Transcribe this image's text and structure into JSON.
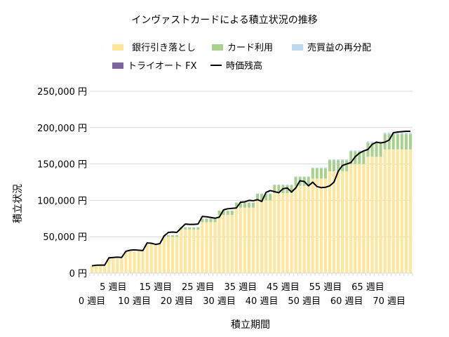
{
  "chart_data": {
    "type": "bar",
    "title": "インヴァストカードによる積立状況の推移",
    "xlabel": "積立期間",
    "ylabel": "積立状況",
    "ylim": [
      0,
      250000
    ],
    "yticks": [
      "0 円",
      "50,000 円",
      "100,000 円",
      "150,000 円",
      "200,000 円",
      "250,000 円"
    ],
    "ytick_values": [
      0,
      50000,
      100000,
      150000,
      200000,
      250000
    ],
    "xtick_labels": [
      "0 週目",
      "5 週目",
      "10 週目",
      "15 週目",
      "20 週目",
      "25 週目",
      "30 週目",
      "35 週目",
      "40 週目",
      "45 週目",
      "50 週目",
      "55 週目",
      "60 週目",
      "65 週目",
      "70 週目"
    ],
    "xtick_weeks": [
      0,
      5,
      10,
      15,
      20,
      25,
      30,
      35,
      40,
      45,
      50,
      55,
      60,
      65,
      70
    ],
    "grid": true,
    "legend_position": "top",
    "stacked": true,
    "series": [
      {
        "name": "銀行引き落とし",
        "color": "#FFE699",
        "kind": "bar",
        "values": [
          10000,
          10000,
          10000,
          10000,
          20000,
          20000,
          20000,
          20000,
          30000,
          30000,
          30000,
          30000,
          30000,
          40000,
          40000,
          40000,
          40000,
          50000,
          50000,
          50000,
          50000,
          60000,
          60000,
          60000,
          60000,
          60000,
          70000,
          70000,
          70000,
          70000,
          80000,
          80000,
          80000,
          80000,
          90000,
          90000,
          90000,
          90000,
          90000,
          100000,
          100000,
          100000,
          100000,
          110000,
          110000,
          110000,
          110000,
          110000,
          120000,
          120000,
          120000,
          120000,
          130000,
          130000,
          130000,
          130000,
          140000,
          140000,
          140000,
          140000,
          140000,
          150000,
          150000,
          150000,
          150000,
          160000,
          160000,
          160000,
          160000,
          170000,
          170000,
          170000,
          170000,
          170000,
          170000,
          170000
        ]
      },
      {
        "name": "カード利用",
        "color": "#A9D18E",
        "kind": "bar",
        "values": [
          0,
          0,
          0,
          0,
          0,
          0,
          0,
          0,
          0,
          0,
          0,
          0,
          0,
          0,
          0,
          0,
          0,
          2000,
          2000,
          2000,
          2000,
          3000,
          3000,
          3000,
          3000,
          3000,
          5000,
          5000,
          5000,
          5000,
          6000,
          6000,
          6000,
          6000,
          7000,
          7000,
          7000,
          7000,
          7000,
          9000,
          9000,
          9000,
          9000,
          11000,
          11000,
          11000,
          11000,
          11000,
          12000,
          12000,
          12000,
          12000,
          14000,
          14000,
          14000,
          14000,
          15000,
          15000,
          15000,
          15000,
          15000,
          17000,
          17000,
          17000,
          17000,
          19000,
          19000,
          19000,
          19000,
          21000,
          21000,
          21000,
          21000,
          21000,
          21000,
          21000
        ]
      },
      {
        "name": "売買益の再分配",
        "color": "#BDD7EE",
        "kind": "bar",
        "values": [
          0,
          0,
          0,
          0,
          0,
          0,
          0,
          0,
          0,
          0,
          0,
          0,
          0,
          0,
          0,
          0,
          0,
          0,
          0,
          0,
          0,
          0,
          0,
          0,
          0,
          0,
          0,
          0,
          0,
          0,
          0,
          0,
          0,
          0,
          0,
          0,
          0,
          0,
          0,
          500,
          500,
          500,
          500,
          800,
          800,
          800,
          800,
          800,
          1000,
          1000,
          1000,
          1000,
          1200,
          1200,
          1200,
          1200,
          1500,
          1500,
          1500,
          1500,
          1500,
          1700,
          1700,
          1700,
          1700,
          2000,
          2000,
          2000,
          2000,
          2000,
          2000,
          2000,
          2000,
          2000,
          2000,
          2000
        ]
      },
      {
        "name": "トライオート FX",
        "color": "#8064A2",
        "kind": "bar",
        "values": [
          0,
          0,
          0,
          0,
          0,
          0,
          0,
          0,
          0,
          0,
          0,
          0,
          0,
          0,
          0,
          0,
          0,
          0,
          0,
          0,
          0,
          0,
          0,
          0,
          0,
          0,
          0,
          0,
          0,
          0,
          0,
          0,
          0,
          0,
          0,
          0,
          0,
          0,
          0,
          0,
          0,
          0,
          0,
          0,
          0,
          0,
          0,
          0,
          0,
          0,
          0,
          0,
          0,
          0,
          0,
          0,
          0,
          0,
          0,
          0,
          0,
          0,
          0,
          0,
          0,
          0,
          0,
          0,
          0,
          0,
          0,
          0,
          0,
          0,
          0,
          0
        ]
      },
      {
        "name": "時価残高",
        "color": "#000000",
        "kind": "line",
        "values": [
          10000,
          10800,
          11000,
          11000,
          21000,
          21500,
          22000,
          21500,
          30000,
          31500,
          32000,
          31500,
          31000,
          41500,
          41000,
          39500,
          40500,
          51000,
          56000,
          56500,
          56000,
          62000,
          67500,
          67000,
          67000,
          67500,
          78000,
          77500,
          76500,
          75500,
          77000,
          87000,
          88500,
          89000,
          89500,
          97500,
          98000,
          100000,
          99500,
          101000,
          98500,
          111000,
          113500,
          112000,
          110500,
          116000,
          117000,
          111500,
          117000,
          127000,
          126000,
          120000,
          125000,
          119000,
          117500,
          118000,
          120000,
          125000,
          140000,
          148000,
          150000,
          152000,
          160000,
          165000,
          168000,
          170000,
          177000,
          180000,
          179000,
          180000,
          183000,
          193000,
          194000,
          194500,
          195000,
          195000
        ]
      }
    ]
  }
}
